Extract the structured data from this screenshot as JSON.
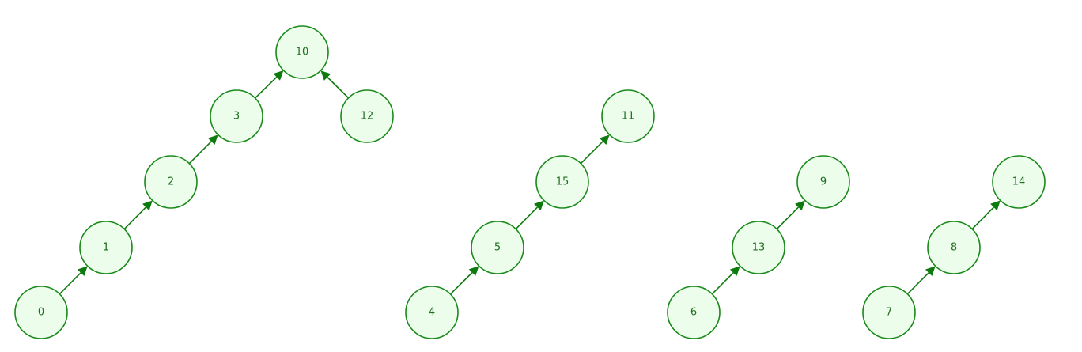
{
  "colors": {
    "node_fill": "#ecfdec",
    "node_stroke": "#1a8a1a",
    "node_text": "#1f6f1f",
    "edge": "#0d7a0d",
    "background": "#ffffff"
  },
  "graph": {
    "type": "forest of directed trees (child points to parent)",
    "nodes": [
      {
        "id": "0",
        "label": "0"
      },
      {
        "id": "1",
        "label": "1"
      },
      {
        "id": "2",
        "label": "2"
      },
      {
        "id": "3",
        "label": "3"
      },
      {
        "id": "10",
        "label": "10"
      },
      {
        "id": "12",
        "label": "12"
      },
      {
        "id": "4",
        "label": "4"
      },
      {
        "id": "5",
        "label": "5"
      },
      {
        "id": "15",
        "label": "15"
      },
      {
        "id": "11",
        "label": "11"
      },
      {
        "id": "6",
        "label": "6"
      },
      {
        "id": "13",
        "label": "13"
      },
      {
        "id": "9",
        "label": "9"
      },
      {
        "id": "7",
        "label": "7"
      },
      {
        "id": "8",
        "label": "8"
      },
      {
        "id": "14",
        "label": "14"
      }
    ],
    "edges": [
      {
        "from": "0",
        "to": "1"
      },
      {
        "from": "1",
        "to": "2"
      },
      {
        "from": "2",
        "to": "3"
      },
      {
        "from": "3",
        "to": "10"
      },
      {
        "from": "12",
        "to": "10"
      },
      {
        "from": "4",
        "to": "5"
      },
      {
        "from": "5",
        "to": "15"
      },
      {
        "from": "15",
        "to": "11"
      },
      {
        "from": "6",
        "to": "13"
      },
      {
        "from": "13",
        "to": "9"
      },
      {
        "from": "7",
        "to": "8"
      },
      {
        "from": "8",
        "to": "14"
      }
    ]
  }
}
